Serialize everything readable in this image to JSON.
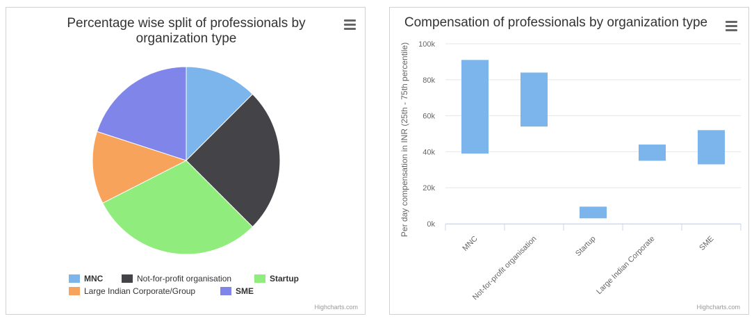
{
  "chart_data": [
    {
      "type": "pie",
      "title_line1": "Percentage wise split of professionals by",
      "title_line2": "organization type",
      "categories": [
        "MNC",
        "Not-for-profit organisation",
        "Startup",
        "Large Indian Corporate/Group",
        "SME"
      ],
      "values": [
        12.5,
        25,
        30,
        12.5,
        20
      ],
      "colors": [
        "#7cb5ec",
        "#434348",
        "#90ed7d",
        "#f7a35c",
        "#8085e9"
      ],
      "legend_bold": [
        true,
        false,
        true,
        false,
        true
      ],
      "legend_placement": "bottom-center",
      "credit": "Highcharts.com"
    },
    {
      "type": "columnrange",
      "title": "Compensation of professionals by organization type",
      "ylabel": "Per day compensation in INR (25th - 75th percentile)",
      "ylim": [
        0,
        100000
      ],
      "yticks": [
        "0k",
        "20k",
        "40k",
        "60k",
        "80k",
        "100k"
      ],
      "categories": [
        "MNC",
        "Not-for-profit organisation",
        "Startup",
        "Large Indian Corporate",
        "SME"
      ],
      "ranges": [
        [
          39000,
          91000
        ],
        [
          54000,
          84000
        ],
        [
          3000,
          9500
        ],
        [
          35000,
          44000
        ],
        [
          33000,
          52000
        ]
      ],
      "color": "#7cb5ec",
      "grid": true,
      "credit": "Highcharts.com"
    }
  ]
}
